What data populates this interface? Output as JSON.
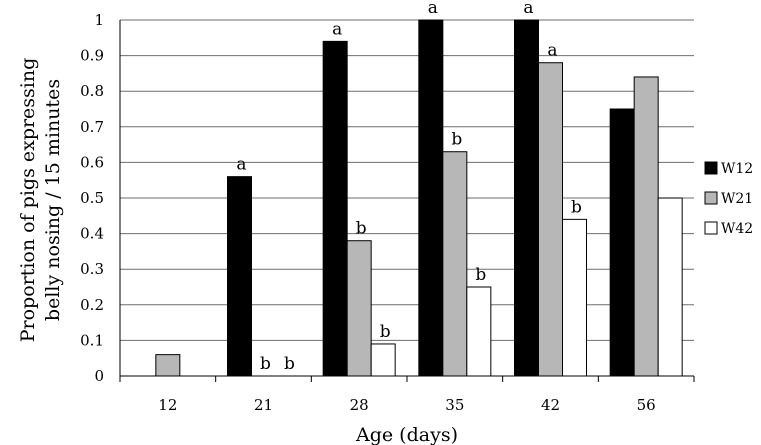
{
  "chart_data": {
    "type": "bar",
    "ylabel_line1": "Proportion of pigs expressing",
    "ylabel_line2": "belly nosing / 15 minutes",
    "xlabel": "Age (days)",
    "categories": [
      "12",
      "21",
      "28",
      "35",
      "42",
      "56"
    ],
    "ylim": [
      0,
      1
    ],
    "yticks": [
      "0",
      "0.1",
      "0.2",
      "0.3",
      "0.4",
      "0.5",
      "0.6",
      "0.7",
      "0.8",
      "0.9",
      "1"
    ],
    "grid": true,
    "legend_position": "right",
    "series": [
      {
        "name": "W12",
        "color": "#000000",
        "values": [
          null,
          0.56,
          0.94,
          1.0,
          1.0,
          0.75
        ],
        "labels": [
          "",
          "a",
          "a",
          "a",
          "a",
          ""
        ]
      },
      {
        "name": "W21",
        "color": "#b7b7b7",
        "values": [
          0.06,
          0,
          0.38,
          0.63,
          0.88,
          0.84
        ],
        "labels": [
          "",
          "b",
          "b",
          "b",
          "a",
          ""
        ]
      },
      {
        "name": "W42",
        "color": "#ffffff",
        "values": [
          null,
          0,
          0.09,
          0.25,
          0.44,
          0.5
        ],
        "labels": [
          "",
          "b",
          "b",
          "b",
          "b",
          ""
        ]
      }
    ]
  }
}
